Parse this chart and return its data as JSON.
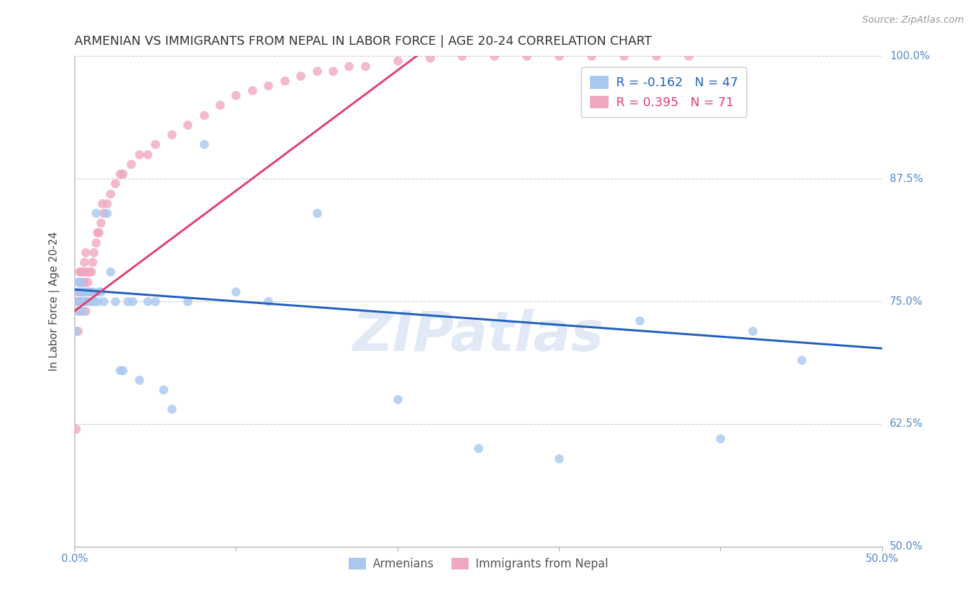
{
  "title": "ARMENIAN VS IMMIGRANTS FROM NEPAL IN LABOR FORCE | AGE 20-24 CORRELATION CHART",
  "source": "Source: ZipAtlas.com",
  "ylabel": "In Labor Force | Age 20-24",
  "xlim": [
    0.0,
    0.5
  ],
  "ylim": [
    0.5,
    1.0
  ],
  "xticks": [
    0.0,
    0.1,
    0.2,
    0.3,
    0.4,
    0.5
  ],
  "xtick_labels": [
    "0.0%",
    "",
    "",
    "",
    "",
    "50.0%"
  ],
  "yticks": [
    0.5,
    0.625,
    0.75,
    0.875,
    1.0
  ],
  "ytick_labels": [
    "50.0%",
    "62.5%",
    "75.0%",
    "87.5%",
    "100.0%"
  ],
  "watermark": "ZIPatlas",
  "blue_color": "#a8c8f0",
  "pink_color": "#f0a8c0",
  "blue_line_color": "#2060c0",
  "pink_line_color": "#e04070",
  "legend_R_blue": "-0.162",
  "legend_N_blue": "47",
  "legend_R_pink": "0.395",
  "legend_N_pink": "71",
  "armenians_label": "Armenians",
  "nepal_label": "Immigrants from Nepal",
  "title_fontsize": 13,
  "axis_label_fontsize": 11,
  "tick_fontsize": 11,
  "source_fontsize": 10,
  "armenians_x": [
    0.001,
    0.002,
    0.002,
    0.003,
    0.003,
    0.004,
    0.004,
    0.005,
    0.005,
    0.006,
    0.006,
    0.007,
    0.007,
    0.008,
    0.009,
    0.01,
    0.011,
    0.012,
    0.013,
    0.014,
    0.015,
    0.016,
    0.018,
    0.02,
    0.022,
    0.025,
    0.028,
    0.03,
    0.033,
    0.036,
    0.04,
    0.045,
    0.05,
    0.055,
    0.06,
    0.07,
    0.08,
    0.1,
    0.12,
    0.15,
    0.2,
    0.25,
    0.3,
    0.35,
    0.4,
    0.42,
    0.45
  ],
  "armenians_y": [
    0.72,
    0.75,
    0.77,
    0.74,
    0.76,
    0.75,
    0.77,
    0.76,
    0.74,
    0.75,
    0.76,
    0.75,
    0.76,
    0.75,
    0.76,
    0.75,
    0.76,
    0.75,
    0.84,
    0.75,
    0.76,
    0.76,
    0.75,
    0.84,
    0.78,
    0.75,
    0.68,
    0.68,
    0.75,
    0.75,
    0.67,
    0.75,
    0.75,
    0.66,
    0.64,
    0.75,
    0.91,
    0.76,
    0.75,
    0.84,
    0.65,
    0.6,
    0.59,
    0.73,
    0.61,
    0.72,
    0.69
  ],
  "nepal_x": [
    0.001,
    0.001,
    0.002,
    0.002,
    0.002,
    0.003,
    0.003,
    0.003,
    0.003,
    0.004,
    0.004,
    0.004,
    0.004,
    0.005,
    0.005,
    0.005,
    0.006,
    0.006,
    0.006,
    0.006,
    0.007,
    0.007,
    0.007,
    0.007,
    0.008,
    0.008,
    0.008,
    0.009,
    0.009,
    0.01,
    0.01,
    0.011,
    0.012,
    0.013,
    0.014,
    0.015,
    0.016,
    0.017,
    0.018,
    0.02,
    0.022,
    0.025,
    0.028,
    0.03,
    0.035,
    0.04,
    0.045,
    0.05,
    0.06,
    0.07,
    0.08,
    0.09,
    0.1,
    0.11,
    0.12,
    0.13,
    0.14,
    0.15,
    0.16,
    0.17,
    0.18,
    0.2,
    0.22,
    0.24,
    0.26,
    0.28,
    0.3,
    0.32,
    0.34,
    0.36,
    0.38
  ],
  "nepal_y": [
    0.62,
    0.75,
    0.72,
    0.74,
    0.76,
    0.75,
    0.77,
    0.78,
    0.76,
    0.75,
    0.76,
    0.77,
    0.78,
    0.76,
    0.77,
    0.78,
    0.75,
    0.76,
    0.77,
    0.79,
    0.74,
    0.76,
    0.78,
    0.8,
    0.76,
    0.77,
    0.78,
    0.76,
    0.78,
    0.76,
    0.78,
    0.79,
    0.8,
    0.81,
    0.82,
    0.82,
    0.83,
    0.85,
    0.84,
    0.85,
    0.86,
    0.87,
    0.88,
    0.88,
    0.89,
    0.9,
    0.9,
    0.91,
    0.92,
    0.93,
    0.94,
    0.95,
    0.96,
    0.965,
    0.97,
    0.975,
    0.98,
    0.985,
    0.985,
    0.99,
    0.99,
    0.995,
    0.998,
    1.0,
    1.0,
    1.0,
    1.0,
    1.0,
    1.0,
    1.0,
    1.0
  ],
  "blue_trend_x": [
    0.0,
    0.5
  ],
  "blue_trend_y": [
    0.762,
    0.702
  ],
  "pink_trend_x": [
    0.0,
    0.22
  ],
  "pink_trend_y": [
    0.74,
    1.01
  ]
}
